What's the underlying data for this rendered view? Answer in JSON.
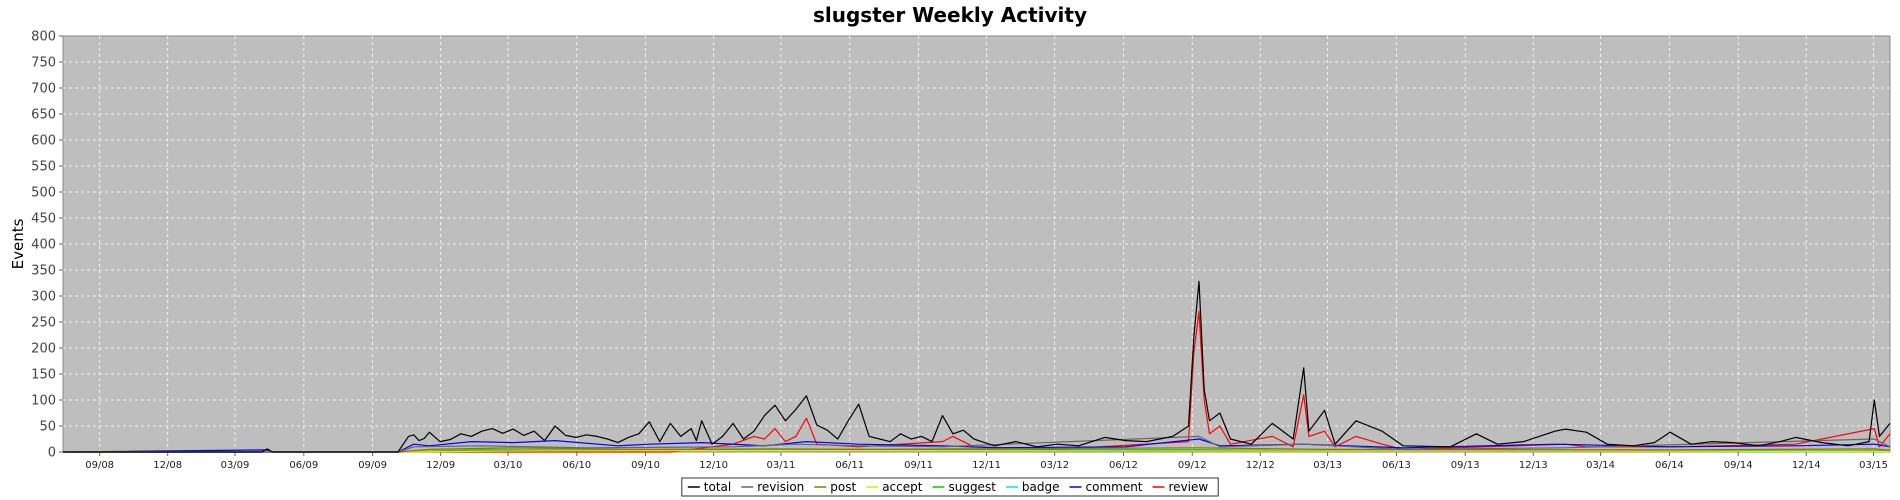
{
  "chart_data": {
    "type": "line",
    "title": "slugster Weekly Activity",
    "xlabel": "",
    "ylabel": "Events",
    "ylim": [
      0,
      800
    ],
    "yticks": [
      0,
      50,
      100,
      150,
      200,
      250,
      300,
      350,
      400,
      450,
      500,
      550,
      600,
      650,
      700,
      750,
      800
    ],
    "x_range": [
      "2008-07-14",
      "2015-03-23"
    ],
    "xticks": [
      {
        "date": "2008-09-01",
        "label": "09/08"
      },
      {
        "date": "2008-12-01",
        "label": "12/08"
      },
      {
        "date": "2009-03-01",
        "label": "03/09"
      },
      {
        "date": "2009-06-01",
        "label": "06/09"
      },
      {
        "date": "2009-09-01",
        "label": "09/09"
      },
      {
        "date": "2009-12-01",
        "label": "12/09"
      },
      {
        "date": "2010-03-01",
        "label": "03/10"
      },
      {
        "date": "2010-06-01",
        "label": "06/10"
      },
      {
        "date": "2010-09-01",
        "label": "09/10"
      },
      {
        "date": "2010-12-01",
        "label": "12/10"
      },
      {
        "date": "2011-03-01",
        "label": "03/11"
      },
      {
        "date": "2011-06-01",
        "label": "06/11"
      },
      {
        "date": "2011-09-01",
        "label": "09/11"
      },
      {
        "date": "2011-12-01",
        "label": "12/11"
      },
      {
        "date": "2012-03-01",
        "label": "03/12"
      },
      {
        "date": "2012-06-01",
        "label": "06/12"
      },
      {
        "date": "2012-09-01",
        "label": "09/12"
      },
      {
        "date": "2012-12-01",
        "label": "12/12"
      },
      {
        "date": "2013-03-01",
        "label": "03/13"
      },
      {
        "date": "2013-06-01",
        "label": "06/13"
      },
      {
        "date": "2013-09-01",
        "label": "09/13"
      },
      {
        "date": "2013-12-01",
        "label": "12/13"
      },
      {
        "date": "2014-03-01",
        "label": "03/14"
      },
      {
        "date": "2014-06-01",
        "label": "06/14"
      },
      {
        "date": "2014-09-01",
        "label": "09/14"
      },
      {
        "date": "2014-12-01",
        "label": "12/14"
      },
      {
        "date": "2015-03-01",
        "label": "03/15"
      }
    ],
    "grid": true,
    "legend_position": "bottom-center",
    "series": [
      {
        "name": "total",
        "color": "#000000",
        "points": [
          [
            "2008-07-14",
            0
          ],
          [
            "2009-04-06",
            0
          ],
          [
            "2009-04-13",
            6
          ],
          [
            "2009-04-20",
            0
          ],
          [
            "2009-10-05",
            0
          ],
          [
            "2009-10-19",
            30
          ],
          [
            "2009-10-26",
            33
          ],
          [
            "2009-11-02",
            22
          ],
          [
            "2009-11-09",
            26
          ],
          [
            "2009-11-16",
            38
          ],
          [
            "2009-11-30",
            20
          ],
          [
            "2009-12-14",
            24
          ],
          [
            "2009-12-28",
            35
          ],
          [
            "2010-01-11",
            30
          ],
          [
            "2010-01-25",
            40
          ],
          [
            "2010-02-08",
            45
          ],
          [
            "2010-02-22",
            36
          ],
          [
            "2010-03-08",
            44
          ],
          [
            "2010-03-22",
            32
          ],
          [
            "2010-04-05",
            40
          ],
          [
            "2010-04-19",
            22
          ],
          [
            "2010-05-03",
            50
          ],
          [
            "2010-05-17",
            32
          ],
          [
            "2010-05-31",
            28
          ],
          [
            "2010-06-14",
            33
          ],
          [
            "2010-06-28",
            30
          ],
          [
            "2010-07-12",
            25
          ],
          [
            "2010-07-26",
            18
          ],
          [
            "2010-08-09",
            28
          ],
          [
            "2010-08-23",
            35
          ],
          [
            "2010-09-06",
            58
          ],
          [
            "2010-09-20",
            20
          ],
          [
            "2010-10-04",
            55
          ],
          [
            "2010-10-18",
            30
          ],
          [
            "2010-11-01",
            45
          ],
          [
            "2010-11-08",
            22
          ],
          [
            "2010-11-15",
            60
          ],
          [
            "2010-11-29",
            15
          ],
          [
            "2010-12-13",
            30
          ],
          [
            "2010-12-27",
            55
          ],
          [
            "2011-01-10",
            25
          ],
          [
            "2011-01-24",
            40
          ],
          [
            "2011-02-07",
            70
          ],
          [
            "2011-02-21",
            90
          ],
          [
            "2011-03-07",
            60
          ],
          [
            "2011-03-21",
            82
          ],
          [
            "2011-04-04",
            108
          ],
          [
            "2011-04-18",
            52
          ],
          [
            "2011-05-02",
            42
          ],
          [
            "2011-05-16",
            25
          ],
          [
            "2011-05-30",
            60
          ],
          [
            "2011-06-13",
            92
          ],
          [
            "2011-06-27",
            30
          ],
          [
            "2011-07-11",
            25
          ],
          [
            "2011-07-25",
            20
          ],
          [
            "2011-08-08",
            35
          ],
          [
            "2011-08-22",
            25
          ],
          [
            "2011-09-05",
            30
          ],
          [
            "2011-09-19",
            20
          ],
          [
            "2011-10-03",
            70
          ],
          [
            "2011-10-17",
            35
          ],
          [
            "2011-10-31",
            42
          ],
          [
            "2011-11-14",
            25
          ],
          [
            "2011-11-28",
            18
          ],
          [
            "2011-12-12",
            12
          ],
          [
            "2012-01-09",
            20
          ],
          [
            "2012-02-06",
            10
          ],
          [
            "2012-03-05",
            15
          ],
          [
            "2012-04-02",
            12
          ],
          [
            "2012-05-07",
            28
          ],
          [
            "2012-06-04",
            22
          ],
          [
            "2012-07-02",
            20
          ],
          [
            "2012-08-06",
            30
          ],
          [
            "2012-08-27",
            50
          ],
          [
            "2012-09-03",
            220
          ],
          [
            "2012-09-10",
            328
          ],
          [
            "2012-09-17",
            120
          ],
          [
            "2012-09-24",
            60
          ],
          [
            "2012-10-08",
            75
          ],
          [
            "2012-10-22",
            25
          ],
          [
            "2012-11-19",
            15
          ],
          [
            "2012-12-17",
            55
          ],
          [
            "2013-01-14",
            25
          ],
          [
            "2013-01-28",
            162
          ],
          [
            "2013-02-04",
            40
          ],
          [
            "2013-02-25",
            80
          ],
          [
            "2013-03-11",
            15
          ],
          [
            "2013-04-08",
            60
          ],
          [
            "2013-05-13",
            40
          ],
          [
            "2013-06-10",
            12
          ],
          [
            "2013-08-12",
            10
          ],
          [
            "2013-09-16",
            35
          ],
          [
            "2013-10-14",
            15
          ],
          [
            "2013-11-18",
            20
          ],
          [
            "2013-12-30",
            40
          ],
          [
            "2014-01-13",
            44
          ],
          [
            "2014-02-10",
            38
          ],
          [
            "2014-03-10",
            15
          ],
          [
            "2014-04-14",
            12
          ],
          [
            "2014-05-12",
            18
          ],
          [
            "2014-06-02",
            38
          ],
          [
            "2014-06-30",
            15
          ],
          [
            "2014-07-28",
            20
          ],
          [
            "2014-08-25",
            18
          ],
          [
            "2014-09-29",
            12
          ],
          [
            "2014-10-27",
            20
          ],
          [
            "2014-11-17",
            28
          ],
          [
            "2014-12-22",
            18
          ],
          [
            "2015-01-26",
            12
          ],
          [
            "2015-02-23",
            20
          ],
          [
            "2015-03-02",
            100
          ],
          [
            "2015-03-09",
            30
          ],
          [
            "2015-03-23",
            55
          ]
        ]
      },
      {
        "name": "revision",
        "color": "#666666",
        "points": [
          [
            "2008-07-14",
            0
          ],
          [
            "2009-10-05",
            0
          ],
          [
            "2009-10-26",
            10
          ],
          [
            "2010-01-25",
            12
          ],
          [
            "2010-06-14",
            8
          ],
          [
            "2010-12-27",
            10
          ],
          [
            "2011-03-21",
            15
          ],
          [
            "2011-06-13",
            12
          ],
          [
            "2011-10-03",
            10
          ],
          [
            "2012-09-10",
            30
          ],
          [
            "2012-10-08",
            10
          ],
          [
            "2013-01-28",
            15
          ],
          [
            "2013-06-10",
            5
          ],
          [
            "2014-01-13",
            8
          ],
          [
            "2015-03-02",
            25
          ],
          [
            "2015-03-23",
            10
          ]
        ]
      },
      {
        "name": "post",
        "color": "#8a7a00",
        "points": [
          [
            "2008-07-14",
            0
          ],
          [
            "2009-10-05",
            0
          ],
          [
            "2009-11-16",
            5
          ],
          [
            "2010-03-08",
            8
          ],
          [
            "2010-08-23",
            5
          ],
          [
            "2011-02-21",
            6
          ],
          [
            "2011-06-13",
            5
          ],
          [
            "2012-09-10",
            8
          ],
          [
            "2013-02-25",
            5
          ],
          [
            "2014-06-02",
            4
          ],
          [
            "2015-03-02",
            6
          ],
          [
            "2015-03-23",
            3
          ]
        ]
      },
      {
        "name": "accept",
        "color": "#e6e600",
        "points": [
          [
            "2008-07-14",
            0
          ],
          [
            "2009-10-05",
            0
          ],
          [
            "2010-03-08",
            2
          ],
          [
            "2011-03-21",
            3
          ],
          [
            "2012-09-10",
            2
          ],
          [
            "2013-09-16",
            2
          ],
          [
            "2015-03-23",
            1
          ]
        ]
      },
      {
        "name": "suggest",
        "color": "#00cc00",
        "points": [
          [
            "2008-07-14",
            0
          ],
          [
            "2009-10-05",
            0
          ],
          [
            "2010-01-25",
            4
          ],
          [
            "2010-08-23",
            3
          ],
          [
            "2011-03-21",
            5
          ],
          [
            "2012-09-10",
            4
          ],
          [
            "2013-05-13",
            2
          ],
          [
            "2015-03-23",
            2
          ]
        ]
      },
      {
        "name": "badge",
        "color": "#00e5e5",
        "points": [
          [
            "2008-07-14",
            0
          ],
          [
            "2009-10-05",
            0
          ],
          [
            "2010-03-08",
            3
          ],
          [
            "2011-03-21",
            4
          ],
          [
            "2012-09-10",
            3
          ],
          [
            "2013-01-28",
            2
          ],
          [
            "2014-06-02",
            3
          ],
          [
            "2015-03-23",
            2
          ]
        ]
      },
      {
        "name": "comment",
        "color": "#0000ff",
        "points": [
          [
            "2008-07-14",
            0
          ],
          [
            "2009-04-13",
            4
          ],
          [
            "2009-04-20",
            0
          ],
          [
            "2009-10-05",
            0
          ],
          [
            "2009-10-26",
            15
          ],
          [
            "2009-11-16",
            12
          ],
          [
            "2010-01-11",
            20
          ],
          [
            "2010-03-08",
            18
          ],
          [
            "2010-05-03",
            22
          ],
          [
            "2010-07-26",
            12
          ],
          [
            "2010-09-06",
            15
          ],
          [
            "2010-11-15",
            18
          ],
          [
            "2011-02-07",
            12
          ],
          [
            "2011-04-04",
            20
          ],
          [
            "2011-06-13",
            15
          ],
          [
            "2011-10-03",
            12
          ],
          [
            "2011-12-12",
            8
          ],
          [
            "2012-06-04",
            10
          ],
          [
            "2012-09-10",
            25
          ],
          [
            "2012-10-08",
            12
          ],
          [
            "2013-01-28",
            15
          ],
          [
            "2013-06-10",
            8
          ],
          [
            "2013-12-30",
            15
          ],
          [
            "2014-06-02",
            10
          ],
          [
            "2014-11-17",
            12
          ],
          [
            "2015-03-02",
            15
          ],
          [
            "2015-03-23",
            10
          ]
        ]
      },
      {
        "name": "review",
        "color": "#ff0000",
        "points": [
          [
            "2008-07-14",
            0
          ],
          [
            "2010-10-04",
            0
          ],
          [
            "2010-12-27",
            15
          ],
          [
            "2011-01-24",
            30
          ],
          [
            "2011-02-07",
            25
          ],
          [
            "2011-02-21",
            45
          ],
          [
            "2011-03-07",
            20
          ],
          [
            "2011-03-21",
            30
          ],
          [
            "2011-04-04",
            65
          ],
          [
            "2011-04-18",
            15
          ],
          [
            "2011-06-13",
            10
          ],
          [
            "2011-10-03",
            20
          ],
          [
            "2011-10-17",
            30
          ],
          [
            "2011-11-14",
            10
          ],
          [
            "2012-03-05",
            5
          ],
          [
            "2012-08-27",
            20
          ],
          [
            "2012-09-03",
            190
          ],
          [
            "2012-09-10",
            270
          ],
          [
            "2012-09-17",
            100
          ],
          [
            "2012-09-24",
            35
          ],
          [
            "2012-10-08",
            50
          ],
          [
            "2012-10-22",
            15
          ],
          [
            "2012-12-17",
            30
          ],
          [
            "2013-01-14",
            10
          ],
          [
            "2013-01-28",
            110
          ],
          [
            "2013-02-04",
            30
          ],
          [
            "2013-02-25",
            40
          ],
          [
            "2013-03-11",
            10
          ],
          [
            "2013-04-08",
            30
          ],
          [
            "2013-05-13",
            15
          ],
          [
            "2013-06-10",
            5
          ],
          [
            "2014-01-13",
            15
          ],
          [
            "2014-02-10",
            10
          ],
          [
            "2014-06-02",
            10
          ],
          [
            "2014-11-17",
            15
          ],
          [
            "2015-03-02",
            45
          ],
          [
            "2015-03-09",
            10
          ],
          [
            "2015-03-23",
            35
          ]
        ]
      }
    ]
  }
}
